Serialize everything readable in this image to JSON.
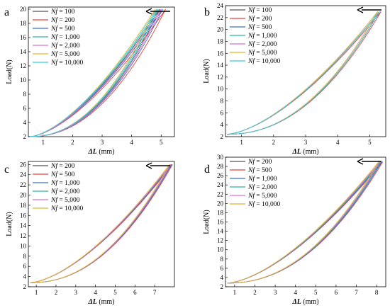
{
  "figure": {
    "legend_prefix": "Nf",
    "legend_eq": "="
  },
  "chart_data": [
    {
      "type": "line",
      "panel_label": "a",
      "xlabel_symbol": "ΔL",
      "xlabel_unit": "(mm)",
      "ylabel": "Load(N)",
      "xlim": [
        0.5,
        5.45
      ],
      "ylim": [
        2,
        20.3
      ],
      "xticks": [
        1,
        2,
        3,
        4,
        5
      ],
      "yticks": [
        2,
        4,
        6,
        8,
        10,
        12,
        14,
        16,
        18,
        20
      ],
      "grid": false,
      "legend_position": "top-left",
      "annotation": "arrow pointing left at top-right",
      "series": [
        {
          "name": "100",
          "color": "#555555",
          "x_max": 4.95
        },
        {
          "name": "200",
          "color": "#e8413a",
          "x_max": 5.15
        },
        {
          "name": "500",
          "color": "#3a6fd8",
          "x_max": 5.05
        },
        {
          "name": "1,000",
          "color": "#2bb3a6",
          "x_max": 4.9
        },
        {
          "name": "2,000",
          "color": "#d473d4",
          "x_max": 5.0
        },
        {
          "name": "5,000",
          "color": "#e2b32d",
          "x_max": 4.8
        },
        {
          "name": "10,000",
          "color": "#3bc8e8",
          "x_max": 4.85
        }
      ],
      "loading_curve": {
        "x_min": 0.55,
        "y_min": 2,
        "y_max": 20
      },
      "unloading_curve": {
        "x_min": 0.55,
        "y_min": 2,
        "y_max": 20
      }
    },
    {
      "type": "line",
      "panel_label": "b",
      "xlabel_symbol": "ΔL",
      "xlabel_unit": "(mm)",
      "ylabel": "Load(N)",
      "xlim": [
        0.5,
        5.5
      ],
      "ylim": [
        2,
        24
      ],
      "xticks": [
        1,
        2,
        3,
        4,
        5
      ],
      "yticks": [
        2,
        4,
        6,
        8,
        10,
        12,
        14,
        16,
        18,
        20,
        22,
        24
      ],
      "grid": false,
      "legend_position": "top-left",
      "annotation": "arrow pointing left at top-right",
      "series": [
        {
          "name": "100",
          "color": "#555555",
          "x_max": 5.3
        },
        {
          "name": "200",
          "color": "#e8413a",
          "x_max": 5.35
        },
        {
          "name": "500",
          "color": "#3a6fd8",
          "x_max": 5.3
        },
        {
          "name": "1,000",
          "color": "#2bb3a6",
          "x_max": 5.3
        },
        {
          "name": "2,000",
          "color": "#d473d4",
          "x_max": 5.25
        },
        {
          "name": "5,000",
          "color": "#e2b32d",
          "x_max": 5.25
        },
        {
          "name": "10,000",
          "color": "#3bc8e8",
          "x_max": 5.3
        }
      ],
      "loading_curve": {
        "x_min": 0.55,
        "y_min": 2.4,
        "y_max": 23
      },
      "unloading_curve": {
        "x_min": 0.55,
        "y_min": 2.4,
        "y_max": 23
      }
    },
    {
      "type": "line",
      "panel_label": "c",
      "xlabel_symbol": "ΔL",
      "xlabel_unit": "(mm)",
      "ylabel": "Load(N)",
      "xlim": [
        0.6,
        8.0
      ],
      "ylim": [
        2,
        26.6
      ],
      "xticks": [
        1,
        2,
        3,
        4,
        5,
        6,
        7
      ],
      "yticks": [
        2,
        4,
        6,
        8,
        10,
        12,
        14,
        16,
        18,
        20,
        22,
        24,
        26
      ],
      "grid": false,
      "legend_position": "top-left",
      "annotation": "arrow pointing left at top-right",
      "series": [
        {
          "name": "200",
          "color": "#555555",
          "x_max": 7.85
        },
        {
          "name": "500",
          "color": "#e8413a",
          "x_max": 7.9
        },
        {
          "name": "1,000",
          "color": "#3a6fd8",
          "x_max": 7.85
        },
        {
          "name": "2,000",
          "color": "#2bb3a6",
          "x_max": 7.8
        },
        {
          "name": "5,000",
          "color": "#d473d4",
          "x_max": 7.8
        },
        {
          "name": "10,000",
          "color": "#e2b32d",
          "x_max": 7.75
        }
      ],
      "loading_curve": {
        "x_min": 0.7,
        "y_min": 2.8,
        "y_max": 26
      },
      "unloading_curve": {
        "x_min": 0.7,
        "y_min": 2.8,
        "y_max": 26
      }
    },
    {
      "type": "line",
      "panel_label": "d",
      "xlabel_symbol": "ΔL",
      "xlabel_unit": "(mm)",
      "ylabel": "Load(N)",
      "xlim": [
        0.55,
        8.45
      ],
      "ylim": [
        2,
        30
      ],
      "xticks": [
        1,
        2,
        3,
        4,
        5,
        6,
        7,
        8
      ],
      "yticks": [
        2,
        4,
        6,
        8,
        10,
        12,
        14,
        16,
        18,
        20,
        22,
        24,
        26,
        28,
        30
      ],
      "grid": false,
      "legend_position": "top-left",
      "annotation": "arrow pointing left at top-right",
      "series": [
        {
          "name": "200",
          "color": "#555555",
          "x_max": 8.2
        },
        {
          "name": "500",
          "color": "#e8413a",
          "x_max": 8.3
        },
        {
          "name": "1,000",
          "color": "#3a6fd8",
          "x_max": 8.25
        },
        {
          "name": "2,000",
          "color": "#2bb3a6",
          "x_max": 8.2
        },
        {
          "name": "5,000",
          "color": "#d473d4",
          "x_max": 8.15
        },
        {
          "name": "10,000",
          "color": "#e2b32d",
          "x_max": 8.1
        }
      ],
      "loading_curve": {
        "x_min": 0.65,
        "y_min": 2.8,
        "y_max": 29
      },
      "unloading_curve": {
        "x_min": 0.65,
        "y_min": 2.8,
        "y_max": 29
      }
    }
  ]
}
